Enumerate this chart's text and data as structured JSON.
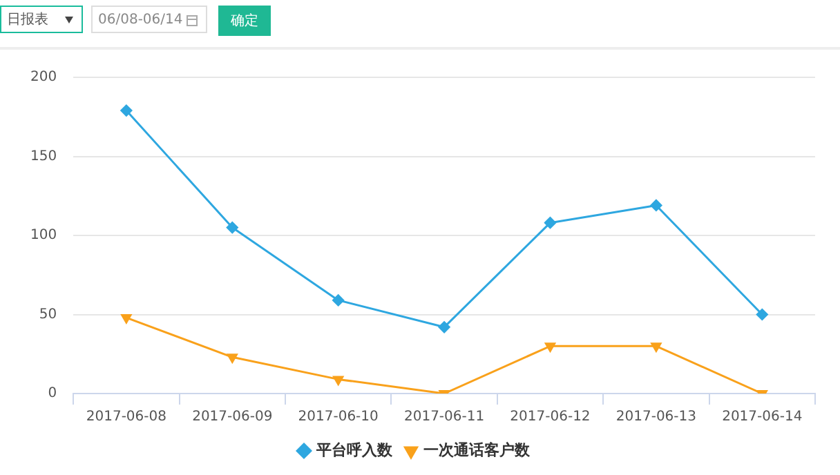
{
  "chart_data": {
    "type": "line",
    "categories": [
      "2017-06-08",
      "2017-06-09",
      "2017-06-10",
      "2017-06-11",
      "2017-06-12",
      "2017-06-13",
      "2017-06-14"
    ],
    "series": [
      {
        "name": "平台呼入数",
        "color": "#2ea7e0",
        "marker": "diamond",
        "values": [
          179,
          105,
          59,
          42,
          108,
          119,
          50
        ]
      },
      {
        "name": "一次通话客户数",
        "color": "#f9a11b",
        "marker": "triangle",
        "values": [
          48,
          23,
          9,
          0,
          30,
          30,
          0
        ]
      }
    ],
    "ylim": [
      0,
      200
    ],
    "yticks": [
      0,
      50,
      100,
      150,
      200
    ],
    "grid": "y",
    "legend": "bottom",
    "line_style": "solid",
    "annotations": [
      "日报表",
      "06/08-06/14",
      "确定"
    ]
  }
}
